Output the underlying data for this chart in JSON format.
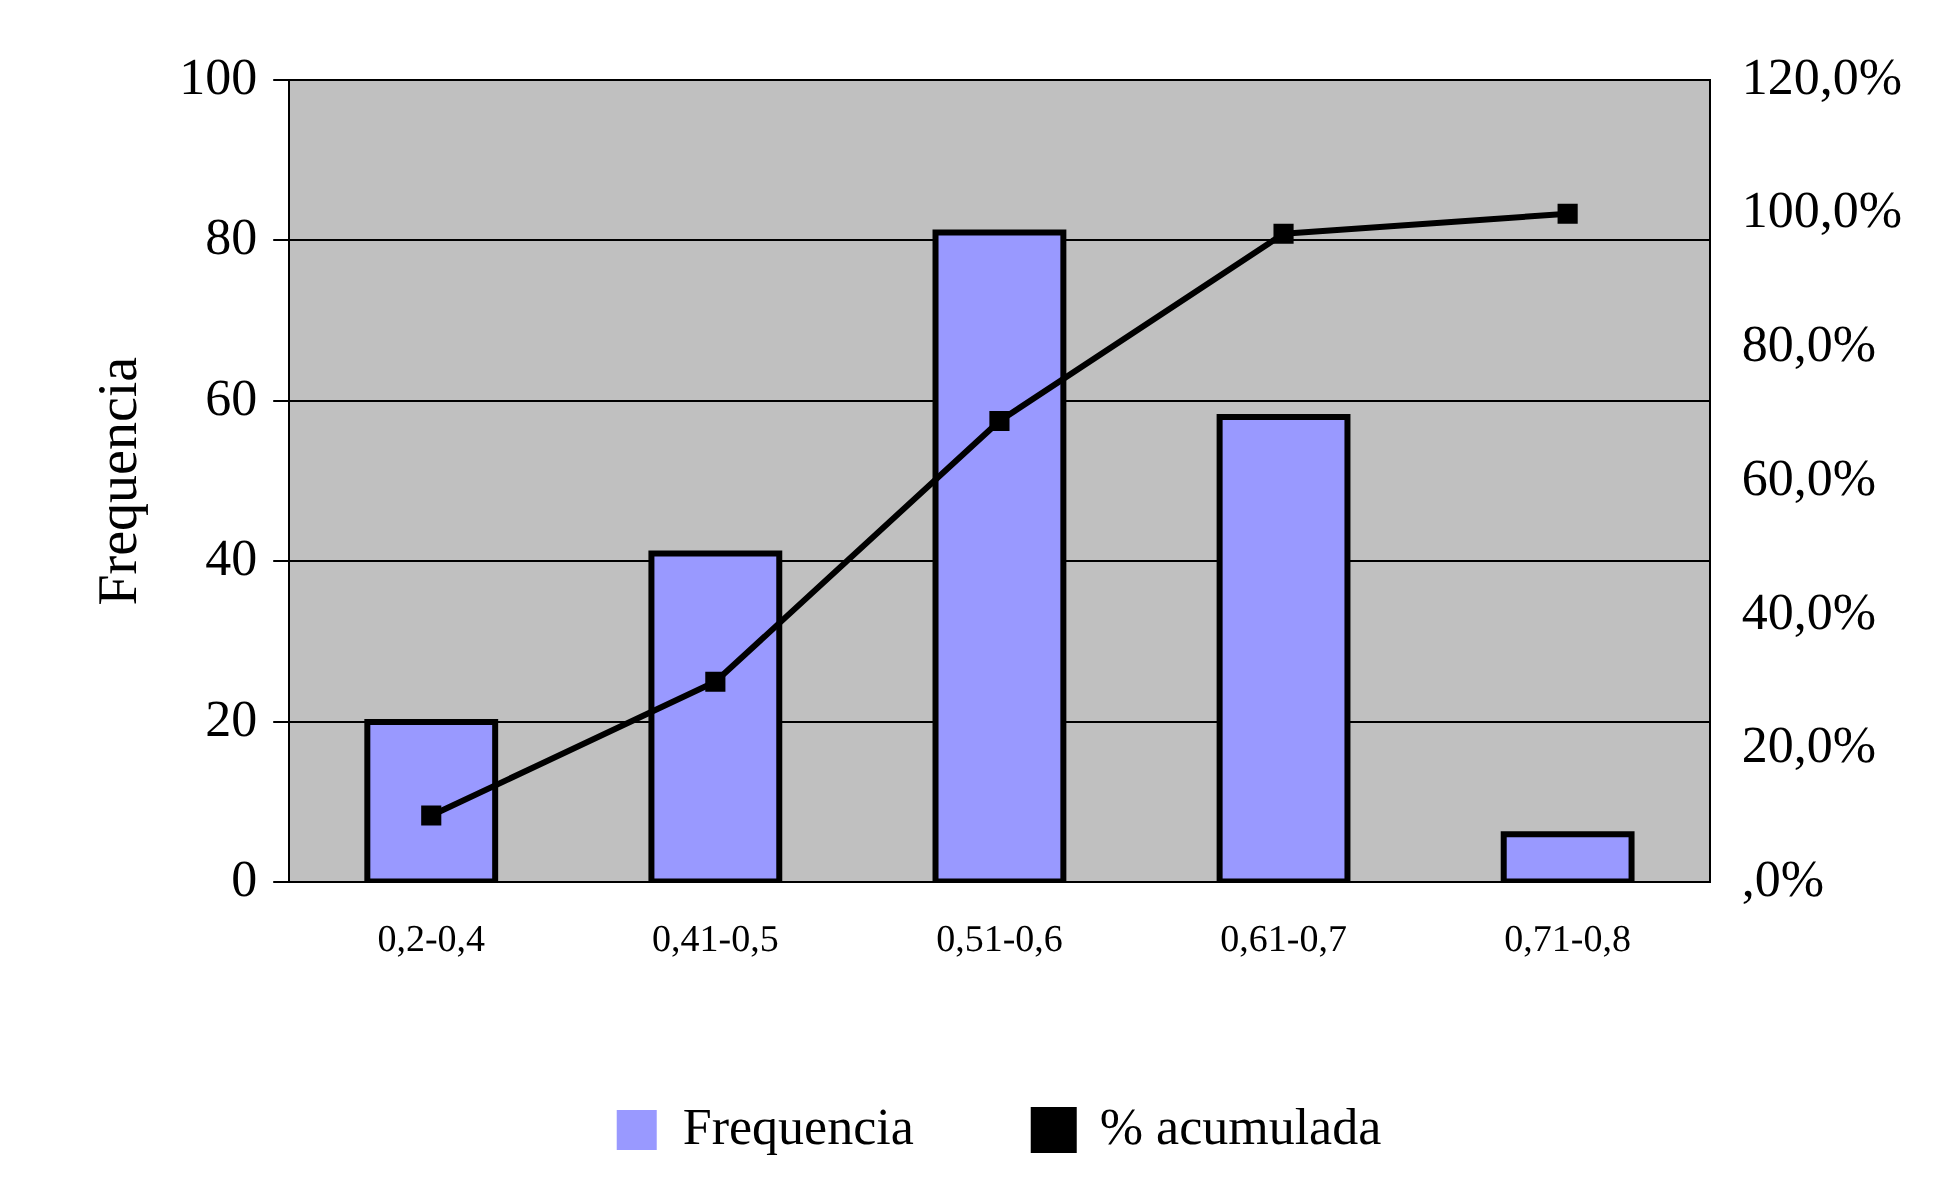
{
  "chart_data": {
    "type": "bar",
    "ylabel": "Frequencia",
    "categories": [
      "0,2-0,4",
      "0,41-0,5",
      "0,51-0,6",
      "0,61-0,7",
      "0,71-0,8"
    ],
    "series": [
      {
        "name": "Frequencia",
        "color": "#9999ff",
        "values": [
          20,
          41,
          81,
          58,
          6
        ]
      },
      {
        "name": "% acumulada",
        "type": "line",
        "axis": "y2",
        "color": "#000000",
        "values": [
          10,
          30,
          69,
          97,
          100
        ]
      }
    ],
    "ylim": [
      0,
      100
    ],
    "yticks": [
      0,
      20,
      40,
      60,
      80,
      100
    ],
    "y2lim": [
      0,
      120
    ],
    "y2ticks": [
      {
        "value": 0,
        "label": ",0%"
      },
      {
        "value": 20,
        "label": "20,0%"
      },
      {
        "value": 40,
        "label": "40,0%"
      },
      {
        "value": 60,
        "label": "60,0%"
      },
      {
        "value": 80,
        "label": "80,0%"
      },
      {
        "value": 100,
        "label": "100,0%"
      },
      {
        "value": 120,
        "label": "120,0%"
      }
    ],
    "grid": "y",
    "legend": "bottom",
    "marker": "square",
    "line_style": "solid"
  }
}
